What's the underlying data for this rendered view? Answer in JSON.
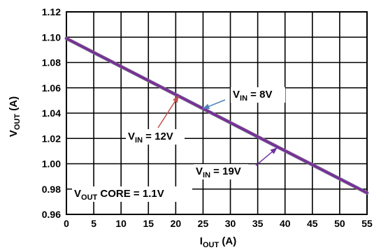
{
  "chart_data": {
    "type": "line",
    "xlabel": {
      "main": "I",
      "sub": "OUT",
      "unit": " (A)"
    },
    "ylabel": {
      "main": "V",
      "sub": "OUT",
      "unit": " (A)"
    },
    "xlim": [
      0,
      55
    ],
    "ylim": [
      0.96,
      1.12
    ],
    "x_ticks": [
      0,
      5,
      10,
      15,
      20,
      25,
      30,
      35,
      40,
      45,
      50,
      55
    ],
    "x_tick_labels": [
      "0",
      "5",
      "10",
      "15",
      "20",
      "25",
      "30",
      "35",
      "40",
      "45",
      "50",
      "55"
    ],
    "y_ticks": [
      0.96,
      0.98,
      1.0,
      1.02,
      1.04,
      1.06,
      1.08,
      1.1,
      1.12
    ],
    "y_tick_labels": [
      "0.96",
      "0.98",
      "1.00",
      "1.02",
      "1.04",
      "1.06",
      "1.08",
      "1.10",
      "1.12"
    ],
    "grid": true,
    "series": [
      {
        "name": "VIN = 8V",
        "color": "#4f81bd",
        "x": [
          0,
          55
        ],
        "y": [
          1.099,
          0.977
        ]
      },
      {
        "name": "VIN = 12V",
        "color": "#c0504d",
        "x": [
          0,
          55
        ],
        "y": [
          1.099,
          0.977
        ]
      },
      {
        "name": "VIN = 19V",
        "color": "#7030a0",
        "x": [
          0,
          55
        ],
        "y": [
          1.099,
          0.977
        ]
      }
    ],
    "annotations": [
      {
        "main": "V",
        "sub": "IN",
        "rest": " = 8V",
        "color": "#4f81bd",
        "arrow_to": [
          25,
          1.0435
        ]
      },
      {
        "main": "V",
        "sub": "IN",
        "rest": " = 12V",
        "color": "#c0504d",
        "arrow_to": [
          20.5,
          1.0535
        ]
      },
      {
        "main": "V",
        "sub": "IN",
        "rest": " = 19V",
        "color": "#7030a0",
        "arrow_to": [
          38.5,
          1.0125
        ]
      },
      {
        "main": "V",
        "sub": "OUT",
        "rest": " CORE = 1.1V"
      }
    ]
  }
}
